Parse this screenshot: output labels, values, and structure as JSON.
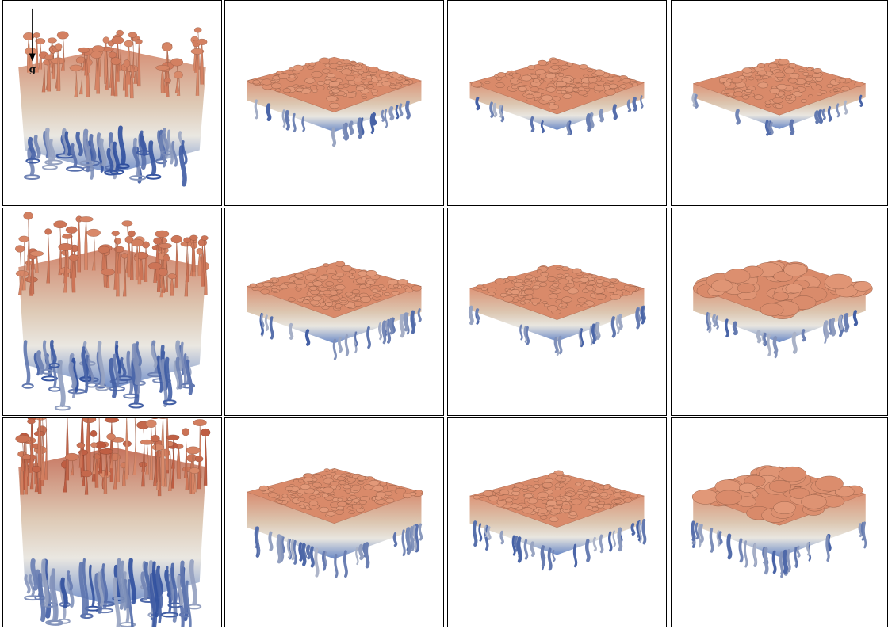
{
  "figure": {
    "gravity_label": "g",
    "rows": 3,
    "cols": 4,
    "colors": {
      "top": "#d98a6a",
      "top_dark": "#b9543a",
      "mid": "#d8c0a8",
      "neutral": "#e6e3dc",
      "bottom": "#5a7cc0",
      "bottom_dark": "#2f4f9e",
      "frame": "#000000"
    },
    "panels": [
      {
        "name": "panel-r1-c1",
        "variant": "plume-tall",
        "growth": 0.55,
        "red": 0.3
      },
      {
        "name": "panel-r1-c2",
        "variant": "slab",
        "growth": 0.3,
        "red": 0.0
      },
      {
        "name": "panel-r1-c3",
        "variant": "slab",
        "growth": 0.2,
        "red": 0.0
      },
      {
        "name": "panel-r1-c4",
        "variant": "slab",
        "growth": 0.15,
        "red": 0.0
      },
      {
        "name": "panel-r2-c1",
        "variant": "plume-tall",
        "growth": 0.75,
        "red": 0.5
      },
      {
        "name": "panel-r2-c2",
        "variant": "slab",
        "growth": 0.45,
        "red": 0.1
      },
      {
        "name": "panel-r2-c3",
        "variant": "slab",
        "growth": 0.35,
        "red": 0.0
      },
      {
        "name": "panel-r2-c4",
        "variant": "cells",
        "growth": 0.4,
        "red": 0.0
      },
      {
        "name": "panel-r3-c1",
        "variant": "plume-tall",
        "growth": 1.0,
        "red": 0.9
      },
      {
        "name": "panel-r3-c2",
        "variant": "slab",
        "growth": 0.7,
        "red": 0.2
      },
      {
        "name": "panel-r3-c3",
        "variant": "slab",
        "growth": 0.5,
        "red": 0.0
      },
      {
        "name": "panel-r3-c4",
        "variant": "cells",
        "growth": 0.6,
        "red": 0.0
      }
    ]
  }
}
